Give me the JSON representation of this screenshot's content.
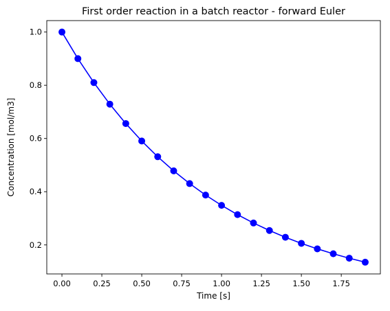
{
  "chart_data": {
    "type": "line",
    "title": "First order reaction in a batch reactor - forward Euler",
    "xlabel": "Time [s]",
    "ylabel": "Concentration [mol/m3]",
    "xlim": [
      -0.095,
      1.995
    ],
    "ylim": [
      0.091,
      1.043
    ],
    "grid": false,
    "x_ticks": [
      0.0,
      0.25,
      0.5,
      0.75,
      1.0,
      1.25,
      1.5,
      1.75
    ],
    "x_tick_labels": [
      "0.00",
      "0.25",
      "0.50",
      "0.75",
      "1.00",
      "1.25",
      "1.50",
      "1.75"
    ],
    "y_ticks": [
      0.2,
      0.4,
      0.6,
      0.8,
      1.0
    ],
    "y_tick_labels": [
      "0.2",
      "0.4",
      "0.6",
      "0.8",
      "1.0"
    ],
    "series": [
      {
        "marker": "circle",
        "color": "#0000ff",
        "x": [
          0.0,
          0.1,
          0.2,
          0.3,
          0.4,
          0.5,
          0.6,
          0.7,
          0.8,
          0.9,
          1.0,
          1.1,
          1.2,
          1.3,
          1.4,
          1.5,
          1.6,
          1.7,
          1.8,
          1.9
        ],
        "y": [
          1.0,
          0.9,
          0.81,
          0.729,
          0.6561,
          0.5905,
          0.5314,
          0.4783,
          0.4305,
          0.3874,
          0.3487,
          0.3138,
          0.2824,
          0.2542,
          0.2288,
          0.2059,
          0.1853,
          0.1668,
          0.1501,
          0.1351
        ]
      }
    ]
  }
}
